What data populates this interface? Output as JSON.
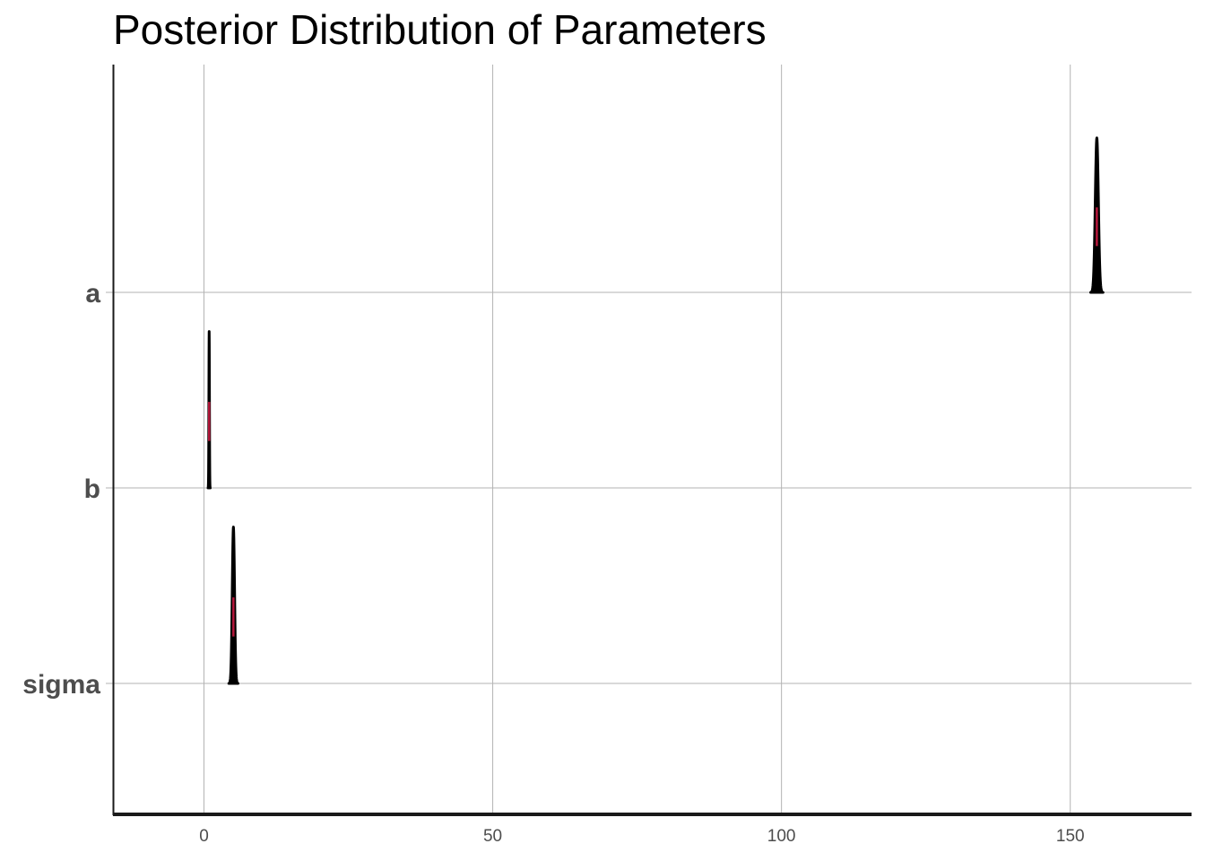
{
  "chart_data": {
    "type": "ridgeline",
    "title": "Posterior Distribution of Parameters",
    "xlabel": "",
    "ylabel": "",
    "xlim": [
      -15.6,
      171
    ],
    "x_ticks": [
      0,
      50,
      100,
      150
    ],
    "x_tick_labels": [
      "0",
      "50",
      "100",
      "150"
    ],
    "grid": true,
    "categories": [
      "a",
      "b",
      "sigma"
    ],
    "colors": {
      "density_fill": "#000000",
      "interval": "#b5173b",
      "grid": "#b3b3b3",
      "axis": "#1a1a1a"
    },
    "series": [
      {
        "name": "a",
        "mean": 154.6,
        "sd": 0.27,
        "interval": [
          154.4,
          154.8
        ],
        "relative_height": 0.79
      },
      {
        "name": "b",
        "mean": 0.9,
        "sd": 0.05,
        "interval": [
          0.82,
          0.98
        ],
        "relative_height": 0.8
      },
      {
        "name": "sigma",
        "mean": 5.1,
        "sd": 0.2,
        "interval": [
          4.9,
          5.3
        ],
        "relative_height": 0.8
      }
    ]
  }
}
